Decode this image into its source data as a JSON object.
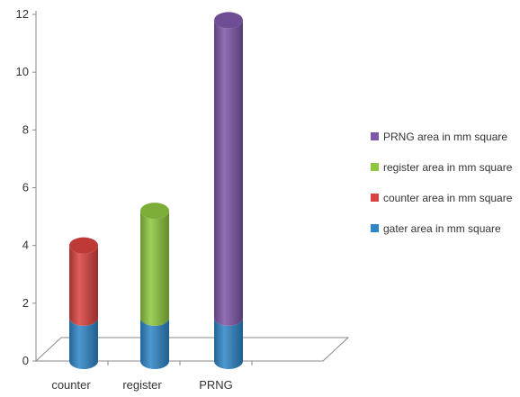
{
  "chart_data": {
    "type": "bar",
    "stacked": true,
    "three_d": true,
    "shape": "cylinder",
    "categories": [
      "counter",
      "register",
      "PRNG"
    ],
    "y_ticks": [
      "0",
      "2",
      "4",
      "6",
      "8",
      "10",
      "12"
    ],
    "ylim": [
      0,
      12
    ],
    "grid": false,
    "legend_position": "right",
    "series": [
      {
        "name": "gater area in mm square",
        "color": "#2E86C8",
        "values": [
          1.5,
          1.5,
          1.5
        ]
      },
      {
        "name": "counter area in mm square",
        "color": "#D9423E",
        "values": [
          2.5,
          0,
          0
        ]
      },
      {
        "name": "register area in mm square",
        "color": "#8DC63F",
        "values": [
          0,
          3.7,
          0
        ]
      },
      {
        "name": "PRNG area in mm square",
        "color": "#7E57A8",
        "values": [
          0,
          0,
          10.3
        ]
      }
    ],
    "legend_order": [
      3,
      2,
      1,
      0
    ]
  }
}
